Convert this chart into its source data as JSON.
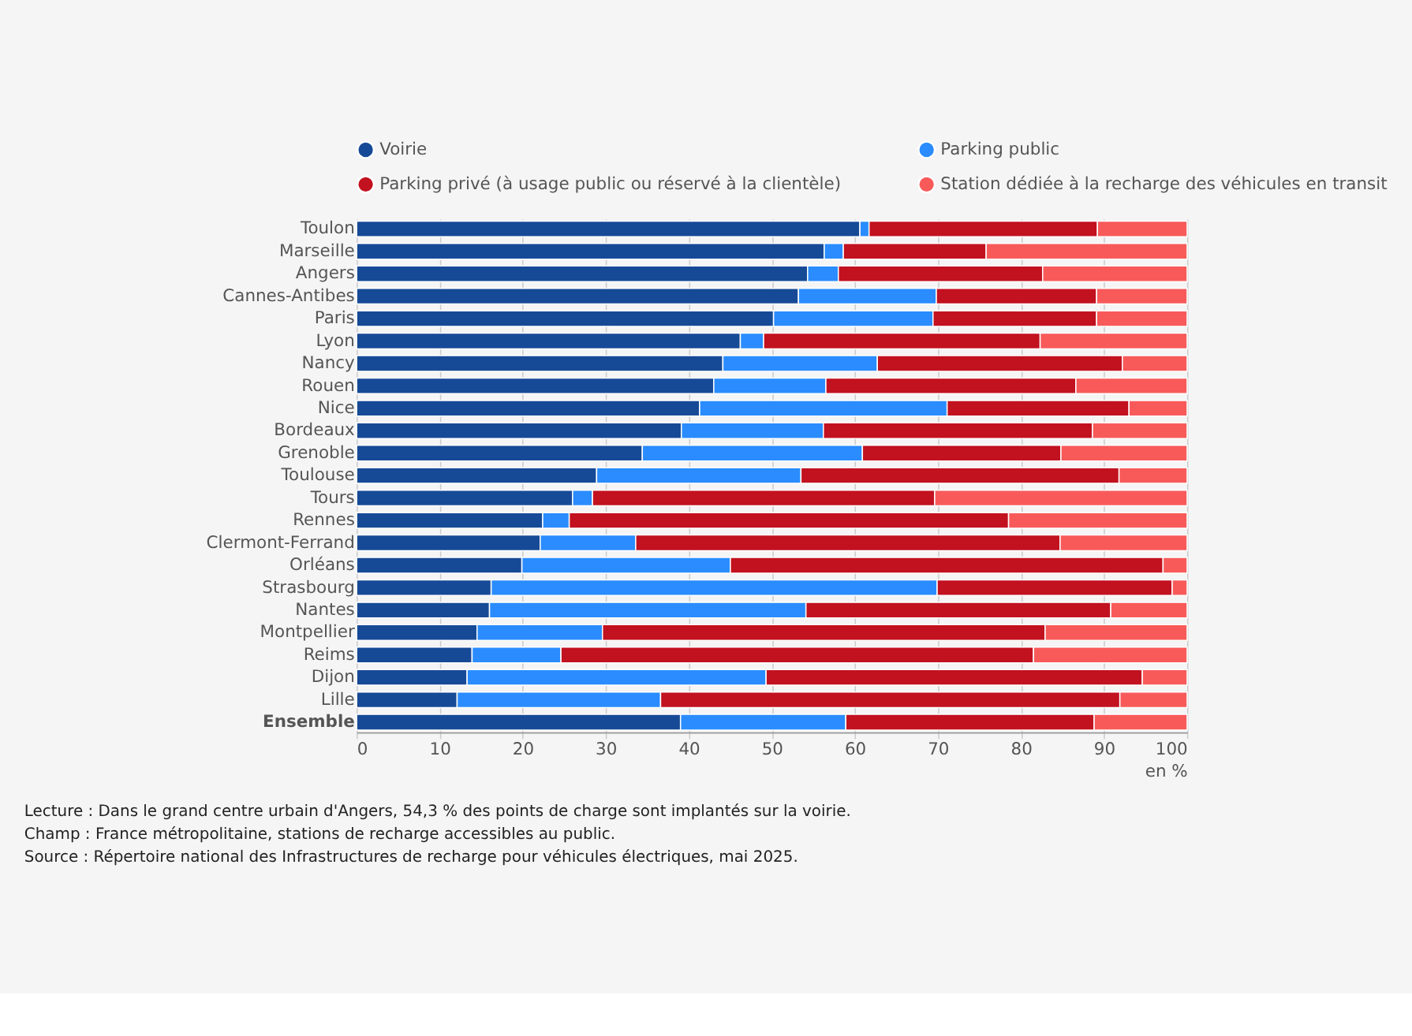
{
  "chart_data": {
    "type": "bar",
    "orientation": "horizontal",
    "stacked": true,
    "categories": [
      "Toulon",
      "Marseille",
      "Angers",
      "Cannes-Antibes",
      "Paris",
      "Lyon",
      "Nancy",
      "Rouen",
      "Nice",
      "Bordeaux",
      "Grenoble",
      "Toulouse",
      "Tours",
      "Rennes",
      "Clermont-Ferrand",
      "Orléans",
      "Strasbourg",
      "Nantes",
      "Montpellier",
      "Reims",
      "Dijon",
      "Lille",
      "Ensemble"
    ],
    "series": [
      {
        "name": "Voirie",
        "color": "#174a96",
        "values": [
          60.6,
          56.3,
          54.3,
          53.2,
          50.2,
          46.2,
          44.1,
          43.0,
          41.3,
          39.1,
          34.4,
          28.9,
          26.0,
          22.4,
          22.1,
          19.9,
          16.2,
          16.0,
          14.5,
          13.9,
          13.3,
          12.1,
          39.0
        ]
      },
      {
        "name": "Parking public",
        "color": "#2a8cff",
        "values": [
          1.1,
          2.3,
          3.7,
          16.6,
          19.2,
          2.8,
          18.6,
          13.5,
          29.8,
          17.1,
          26.5,
          24.6,
          2.4,
          3.2,
          11.5,
          25.1,
          53.7,
          38.1,
          15.1,
          10.7,
          36.0,
          24.5,
          19.9
        ]
      },
      {
        "name": "Parking privé (à usage public ou réservé à la clientèle)",
        "color": "#c2111f",
        "values": [
          27.5,
          17.2,
          24.6,
          19.3,
          19.7,
          33.3,
          29.5,
          30.1,
          21.9,
          32.4,
          23.9,
          38.3,
          41.2,
          52.9,
          51.1,
          52.1,
          28.3,
          36.7,
          53.3,
          56.9,
          45.3,
          55.3,
          29.9
        ]
      },
      {
        "name": "Station dédiée à la recharge des véhicules en transit",
        "color": "#f85a5a",
        "values": [
          10.8,
          24.2,
          17.4,
          10.9,
          10.9,
          17.7,
          7.8,
          13.4,
          7.0,
          11.4,
          15.2,
          8.2,
          30.4,
          21.5,
          15.3,
          2.9,
          1.8,
          9.2,
          17.1,
          18.5,
          5.4,
          8.1,
          11.2
        ]
      }
    ],
    "xlim": [
      0,
      100
    ],
    "xticks": [
      0,
      10,
      20,
      30,
      40,
      50,
      60,
      70,
      80,
      90,
      100
    ],
    "xlabel": "en %",
    "grid": "x",
    "legend": "top",
    "annotations": [
      "Lecture : Dans le grand centre urbain d'Angers, 54,3 % des points de charge sont implantés sur la voirie.",
      "Champ : France métropolitaine, stations de recharge accessibles au public.",
      "Source : Répertoire national des Infrastructures de recharge pour véhicules électriques, mai 2025."
    ]
  }
}
